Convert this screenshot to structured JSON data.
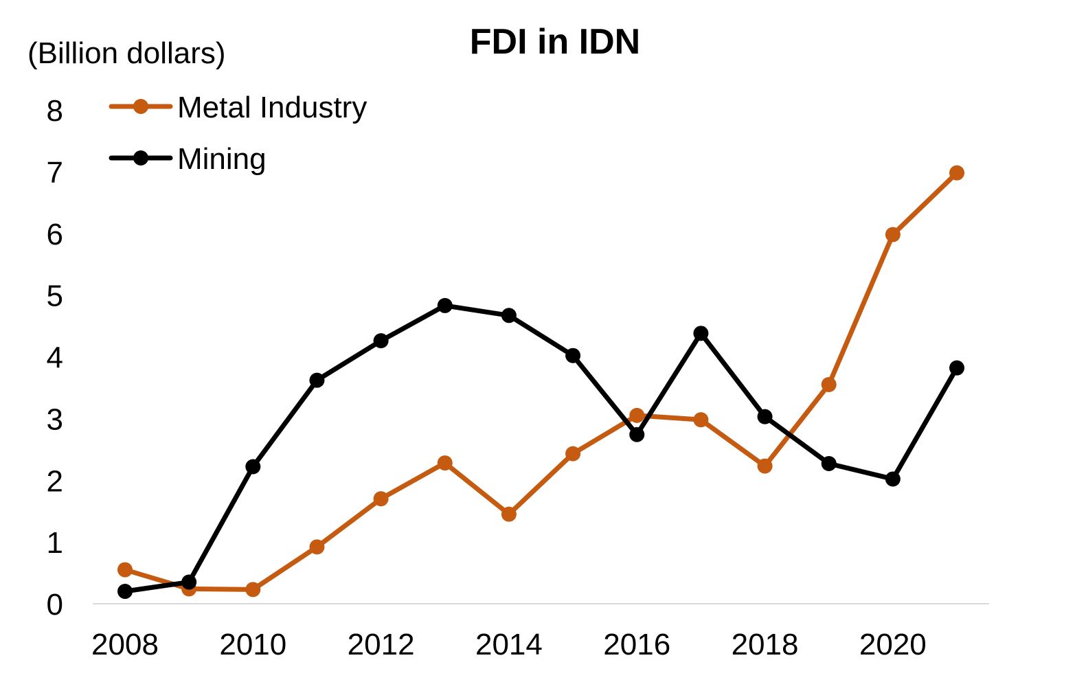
{
  "chart_data": {
    "type": "line",
    "title": "FDI in IDN",
    "ylabel": "(Billion dollars)",
    "xlabel": "",
    "x": [
      2008,
      2009,
      2010,
      2011,
      2012,
      2013,
      2014,
      2015,
      2016,
      2017,
      2018,
      2019,
      2020,
      2021
    ],
    "x_ticks": [
      "2008",
      "2010",
      "2012",
      "2014",
      "2016",
      "2018",
      "2020"
    ],
    "xlim": [
      2008,
      2021
    ],
    "ylim": [
      0,
      8
    ],
    "y_ticks": [
      "0",
      "1",
      "2",
      "3",
      "4",
      "5",
      "6",
      "7",
      "8"
    ],
    "grid": false,
    "legend_position": "top-left",
    "series": [
      {
        "name": "Metal Industry",
        "color": "#c55a11",
        "values": [
          0.55,
          0.24,
          0.23,
          0.92,
          1.7,
          2.28,
          1.45,
          2.43,
          3.05,
          2.98,
          2.23,
          3.55,
          5.98,
          6.98
        ]
      },
      {
        "name": "Mining",
        "color": "#000000",
        "values": [
          0.2,
          0.35,
          2.22,
          3.62,
          4.26,
          4.83,
          4.67,
          4.02,
          2.74,
          4.38,
          3.03,
          2.27,
          2.02,
          3.82
        ]
      }
    ]
  }
}
